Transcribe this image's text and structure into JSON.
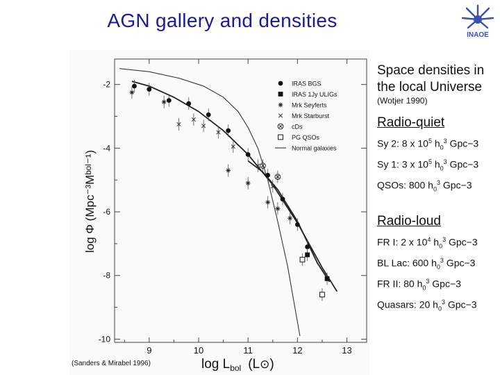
{
  "slide": {
    "title": "AGN gallery and densities",
    "credit": "(Sanders & Mirabel 1996)"
  },
  "logo": {
    "text": "INAOE",
    "color": "#3a4fae"
  },
  "right_panel": {
    "heading_line1": "Space densities in",
    "heading_line2": "the local Universe",
    "reference": "(Wotjer 1990)",
    "quiet": {
      "header": "Radio-quiet",
      "items": [
        {
          "label": "Sy 2: 8 x 10",
          "exp": "5",
          "unit": " h",
          "sub": "0",
          "sup2": "3",
          "tail": " Gpc−3"
        },
        {
          "label": "Sy 1: 3 x 10",
          "exp": "5",
          "unit": " h",
          "sub": "0",
          "sup2": "3",
          "tail": " Gpc−3"
        },
        {
          "label": "QSOs:  800 h",
          "exp": "",
          "unit": "",
          "sub": "0",
          "sup2": "3",
          "tail": " Gpc−3"
        }
      ]
    },
    "loud": {
      "header": "Radio-loud",
      "items": [
        {
          "label": "FR I: 2 x 10",
          "exp": "4",
          "unit": " h",
          "sub": "0",
          "sup2": "3",
          "tail": " Gpc−3"
        },
        {
          "label": "BL Lac:  600 h",
          "exp": "",
          "unit": "",
          "sub": "0",
          "sup2": "3",
          "tail": " Gpc−3"
        },
        {
          "label": "FR II:        80 h",
          "exp": "",
          "unit": "",
          "sub": "0",
          "sup2": "3",
          "tail": " Gpc−3"
        },
        {
          "label": "Quasars:  20 h",
          "exp": "",
          "unit": "",
          "sub": "0",
          "sup2": "3",
          "tail": " Gpc−3"
        }
      ]
    }
  },
  "chart_data": {
    "type": "scatter",
    "xlabel": "log L",
    "xlabel_sub": "bol",
    "xlabel_unit": "(L",
    "xlabel_sun": "⊙",
    "xlabel_close": ")",
    "ylabel": "log Φ   (Mpc⁻³Mᵇᵒˡ⁻¹)",
    "xlim": [
      8.3,
      13.4
    ],
    "ylim": [
      -10.1,
      -1.2
    ],
    "x_ticks": [
      "9",
      "10",
      "11",
      "12",
      "13"
    ],
    "x_tick_values": [
      9,
      10,
      11,
      12,
      13
    ],
    "y_ticks": [
      "-2",
      "-4",
      "-6",
      "-8",
      "-10"
    ],
    "y_tick_values": [
      -2,
      -4,
      -6,
      -8,
      -10
    ],
    "legend_position": "top-right",
    "legend": [
      {
        "label": "IRAS BGS",
        "marker": "filled-circle"
      },
      {
        "label": "IRAS 1Jy ULIGs",
        "marker": "filled-square"
      },
      {
        "label": "Mrk Seyferts",
        "marker": "star"
      },
      {
        "label": "Mrk Starburst",
        "marker": "cross"
      },
      {
        "label": "cDs",
        "marker": "circled-cross"
      },
      {
        "label": "PG QSOs",
        "marker": "open-square"
      },
      {
        "label": "Normal galaxies",
        "marker": "line"
      }
    ],
    "series": [
      {
        "name": "IRAS BGS",
        "marker": "filled-circle",
        "x": [
          8.7,
          9.0,
          9.4,
          9.8,
          10.2,
          10.6,
          11.0,
          11.4,
          11.7,
          12.0,
          12.2
        ],
        "y": [
          -2.05,
          -2.15,
          -2.5,
          -2.6,
          -2.95,
          -3.45,
          -4.2,
          -4.85,
          -5.6,
          -6.4,
          -7.1
        ]
      },
      {
        "name": "IRAS 1Jy ULIGs",
        "marker": "filled-square",
        "x": [
          12.2,
          12.6
        ],
        "y": [
          -7.35,
          -8.1
        ]
      },
      {
        "name": "Mrk Seyferts",
        "marker": "star",
        "x": [
          8.65,
          9.3,
          10.6,
          11.0,
          11.4,
          11.6,
          11.85
        ],
        "y": [
          -2.25,
          -2.55,
          -4.7,
          -5.1,
          -5.7,
          -5.9,
          -6.2
        ]
      },
      {
        "name": "Mrk Starburst",
        "marker": "cross",
        "x": [
          9.6,
          9.9,
          10.1,
          10.4,
          10.7,
          11.2,
          11.5
        ],
        "y": [
          -3.25,
          -3.1,
          -3.3,
          -3.5,
          -3.95,
          -4.55,
          -5.2
        ]
      },
      {
        "name": "cDs",
        "marker": "circled-cross",
        "x": [
          11.3,
          11.6
        ],
        "y": [
          -4.55,
          -4.9
        ]
      },
      {
        "name": "PG QSOs",
        "marker": "open-square",
        "x": [
          12.1,
          12.5
        ],
        "y": [
          -7.5,
          -8.6
        ]
      },
      {
        "name": "Bright fit",
        "marker": "line",
        "x": [
          8.65,
          9.0,
          9.5,
          10.0,
          10.5,
          11.0,
          11.5,
          12.0,
          12.5,
          12.8
        ],
        "y": [
          -1.9,
          -2.05,
          -2.4,
          -2.85,
          -3.45,
          -4.2,
          -5.15,
          -6.35,
          -7.75,
          -8.5
        ]
      },
      {
        "name": "Steep fit",
        "marker": "line",
        "x": [
          11.0,
          11.3,
          11.6,
          12.0,
          12.4,
          12.65
        ],
        "y": [
          -4.4,
          -4.75,
          -5.3,
          -6.3,
          -7.6,
          -8.2
        ]
      },
      {
        "name": "Normal galaxies",
        "marker": "line",
        "x": [
          8.4,
          9.0,
          9.6,
          10.1,
          10.5,
          10.8,
          11.0,
          11.2,
          11.4,
          11.6,
          11.8,
          12.05
        ],
        "y": [
          -1.5,
          -1.6,
          -1.8,
          -2.05,
          -2.4,
          -2.85,
          -3.35,
          -4.0,
          -5.0,
          -6.3,
          -7.7,
          -9.9
        ]
      }
    ]
  }
}
